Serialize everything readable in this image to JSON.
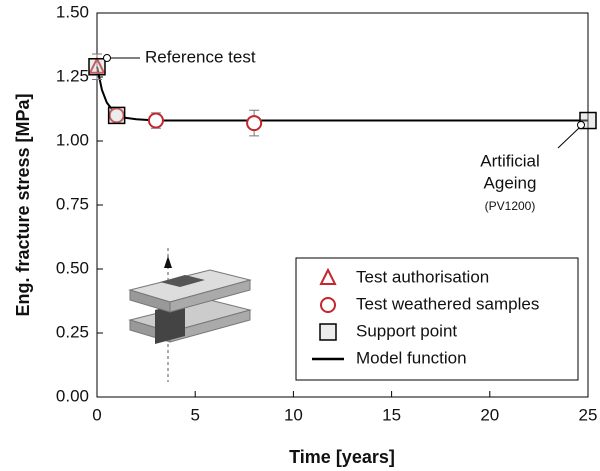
{
  "chart_data": {
    "type": "scatter",
    "xlabel": "Time [years]",
    "ylabel": "Eng. fracture stress [MPa]",
    "xlim": [
      0,
      25
    ],
    "xticks": [
      0,
      5,
      10,
      15,
      20,
      25
    ],
    "ylim": [
      0,
      1.5
    ],
    "yticks": [
      {
        "value": 0,
        "label": "0.00"
      },
      {
        "value": 0.25,
        "label": "0.25"
      },
      {
        "value": 0.5,
        "label": "0.50"
      },
      {
        "value": 0.75,
        "label": "0.75"
      },
      {
        "value": 1,
        "label": "1.00"
      },
      {
        "value": 1.25,
        "label": "1.25"
      },
      {
        "value": 1.5,
        "label": "1.50"
      }
    ],
    "legend": "lower right",
    "series": [
      {
        "name": "Test authorisation",
        "marker": "triangle",
        "color": "#c1272d",
        "x": [
          0
        ],
        "values": [
          1.29
        ],
        "errors": [
          0.05
        ]
      },
      {
        "name": "Test weathered samples",
        "marker": "circle",
        "color": "#c1272d",
        "x": [
          1,
          3,
          8
        ],
        "values": [
          1.1,
          1.08,
          1.07
        ],
        "errors": [
          0.02,
          0.03,
          0.05
        ]
      },
      {
        "name": "Support point",
        "marker": "square",
        "color": "#000000",
        "x": [
          0,
          1,
          25
        ],
        "values": [
          1.29,
          1.1,
          1.08
        ]
      },
      {
        "name": "Model function",
        "marker": "line",
        "color": "#000000",
        "x": [
          0,
          0.25,
          0.5,
          1,
          1.5,
          2,
          3,
          5,
          8,
          25
        ],
        "values": [
          1.29,
          1.2,
          1.15,
          1.1,
          1.09,
          1.085,
          1.08,
          1.08,
          1.08,
          1.08
        ]
      }
    ],
    "annotations": [
      "Reference test",
      "Artificial",
      "Ageing",
      "(PV1200)"
    ]
  }
}
